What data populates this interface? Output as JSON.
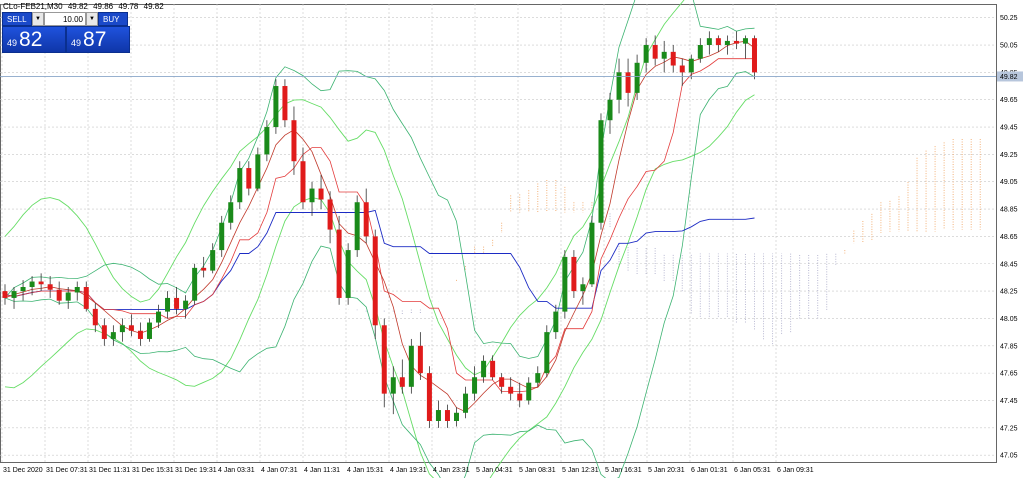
{
  "ohlc": {
    "symbol": "CLo-FEB21,M30",
    "open": "49.82",
    "high": "49.86",
    "low": "49.78",
    "close": "49.82"
  },
  "trade": {
    "sell_label": "SELL",
    "buy_label": "BUY",
    "lot": "10.00",
    "bid_small": "49",
    "bid_big": "82",
    "ask_small": "49",
    "ask_big": "87",
    "dropdown_glyph": "▼"
  },
  "price_axis": {
    "ticks": [
      "50.25",
      "50.05",
      "49.85",
      "49.65",
      "49.45",
      "49.25",
      "49.05",
      "48.85",
      "48.65",
      "48.45",
      "48.25",
      "48.05",
      "47.85",
      "47.65",
      "47.45",
      "47.25",
      "47.05"
    ],
    "current_price": "49.82"
  },
  "time_axis": {
    "labels": [
      "31 Dec 2020",
      "31 Dec 07:31",
      "31 Dec 11:31",
      "31 Dec 15:31",
      "31 Dec 19:31",
      "4 Jan 03:31",
      "4 Jan 07:31",
      "4 Jan 11:31",
      "4 Jan 15:31",
      "4 Jan 19:31",
      "4 Jan 23:31",
      "5 Jan 04:31",
      "5 Jan 08:31",
      "5 Jan 12:31",
      "5 Jan 16:31",
      "5 Jan 20:31",
      "6 Jan 01:31",
      "6 Jan 05:31",
      "6 Jan 09:31"
    ]
  },
  "colors": {
    "bull": "#1a8a1a",
    "bear": "#e01b1b",
    "grid": "#c8c8c8",
    "kumo": "#f3b27a",
    "kumo_bear": "#b9b9d2",
    "bollinger": "#3cb371",
    "envelope": "#66dd66",
    "kijun": "#1c2bc4",
    "tenkan": "#e33b3b",
    "price_line": "#8aa6c8"
  },
  "chart_data": {
    "type": "candlestick",
    "title": "CLo-FEB21,M30",
    "ylim": [
      47.0,
      50.35
    ],
    "candles": [
      [
        48.25,
        48.3,
        48.15,
        48.2
      ],
      [
        48.2,
        48.28,
        48.12,
        48.25
      ],
      [
        48.25,
        48.33,
        48.18,
        48.28
      ],
      [
        48.28,
        48.36,
        48.22,
        48.32
      ],
      [
        48.32,
        48.38,
        48.25,
        48.3
      ],
      [
        48.3,
        48.36,
        48.2,
        48.26
      ],
      [
        48.26,
        48.32,
        48.15,
        48.18
      ],
      [
        48.18,
        48.28,
        48.12,
        48.24
      ],
      [
        48.24,
        48.32,
        48.18,
        48.28
      ],
      [
        48.28,
        48.32,
        48.1,
        48.12
      ],
      [
        48.12,
        48.16,
        47.95,
        48.0
      ],
      [
        48.0,
        48.05,
        47.85,
        47.9
      ],
      [
        47.9,
        48.0,
        47.85,
        47.95
      ],
      [
        47.95,
        48.05,
        47.88,
        48.0
      ],
      [
        48.0,
        48.08,
        47.92,
        47.96
      ],
      [
        47.96,
        48.02,
        47.85,
        47.9
      ],
      [
        47.9,
        48.05,
        47.88,
        48.02
      ],
      [
        48.02,
        48.15,
        47.98,
        48.1
      ],
      [
        48.1,
        48.25,
        48.05,
        48.2
      ],
      [
        48.2,
        48.28,
        48.08,
        48.12
      ],
      [
        48.12,
        48.22,
        48.05,
        48.18
      ],
      [
        48.18,
        48.45,
        48.15,
        48.42
      ],
      [
        48.42,
        48.5,
        48.35,
        48.4
      ],
      [
        48.4,
        48.6,
        48.38,
        48.55
      ],
      [
        48.55,
        48.8,
        48.5,
        48.75
      ],
      [
        48.75,
        48.95,
        48.7,
        48.9
      ],
      [
        48.9,
        49.2,
        48.85,
        49.15
      ],
      [
        49.15,
        49.2,
        48.95,
        49.0
      ],
      [
        49.0,
        49.3,
        48.98,
        49.25
      ],
      [
        49.25,
        49.5,
        49.2,
        49.45
      ],
      [
        49.45,
        49.8,
        49.4,
        49.75
      ],
      [
        49.75,
        49.8,
        49.45,
        49.5
      ],
      [
        49.5,
        49.6,
        49.1,
        49.2
      ],
      [
        49.2,
        49.3,
        48.85,
        48.9
      ],
      [
        48.9,
        49.05,
        48.8,
        49.0
      ],
      [
        49.0,
        49.1,
        48.85,
        48.92
      ],
      [
        48.92,
        48.98,
        48.6,
        48.7
      ],
      [
        48.7,
        48.8,
        48.15,
        48.2
      ],
      [
        48.2,
        48.6,
        48.15,
        48.55
      ],
      [
        48.55,
        48.95,
        48.5,
        48.9
      ],
      [
        48.9,
        49.0,
        48.6,
        48.65
      ],
      [
        48.65,
        48.7,
        47.9,
        48.0
      ],
      [
        48.0,
        48.05,
        47.4,
        47.5
      ],
      [
        47.5,
        47.7,
        47.35,
        47.62
      ],
      [
        47.62,
        47.75,
        47.5,
        47.55
      ],
      [
        47.55,
        47.9,
        47.5,
        47.85
      ],
      [
        47.85,
        47.95,
        47.6,
        47.65
      ],
      [
        47.65,
        47.7,
        47.25,
        47.3
      ],
      [
        47.3,
        47.45,
        47.25,
        47.38
      ],
      [
        47.38,
        47.42,
        47.25,
        47.3
      ],
      [
        47.3,
        47.4,
        47.26,
        47.36
      ],
      [
        47.36,
        47.55,
        47.32,
        47.5
      ],
      [
        47.5,
        47.7,
        47.45,
        47.62
      ],
      [
        47.62,
        47.78,
        47.58,
        47.74
      ],
      [
        47.74,
        47.78,
        47.6,
        47.62
      ],
      [
        47.62,
        47.65,
        47.5,
        47.55
      ],
      [
        47.55,
        47.62,
        47.45,
        47.5
      ],
      [
        47.5,
        47.58,
        47.4,
        47.45
      ],
      [
        47.45,
        47.62,
        47.42,
        47.58
      ],
      [
        47.58,
        47.7,
        47.55,
        47.65
      ],
      [
        47.65,
        48.0,
        47.62,
        47.95
      ],
      [
        47.95,
        48.15,
        47.9,
        48.1
      ],
      [
        48.1,
        48.55,
        48.05,
        48.5
      ],
      [
        48.5,
        48.55,
        48.2,
        48.25
      ],
      [
        48.25,
        48.35,
        48.15,
        48.3
      ],
      [
        48.3,
        48.8,
        48.28,
        48.75
      ],
      [
        48.75,
        49.55,
        48.7,
        49.5
      ],
      [
        49.5,
        49.7,
        49.4,
        49.65
      ],
      [
        49.65,
        49.95,
        49.55,
        49.85
      ],
      [
        49.85,
        49.95,
        49.6,
        49.7
      ],
      [
        49.7,
        49.98,
        49.65,
        49.92
      ],
      [
        49.92,
        50.1,
        49.85,
        50.05
      ],
      [
        50.05,
        50.12,
        49.9,
        49.95
      ],
      [
        49.95,
        50.08,
        49.85,
        50.0
      ],
      [
        50.0,
        50.05,
        49.85,
        49.9
      ],
      [
        49.9,
        49.95,
        49.75,
        49.85
      ],
      [
        49.85,
        49.98,
        49.8,
        49.95
      ],
      [
        49.95,
        50.1,
        49.92,
        50.05
      ],
      [
        50.05,
        50.15,
        49.98,
        50.1
      ],
      [
        50.1,
        50.12,
        50.0,
        50.05
      ],
      [
        50.05,
        50.12,
        49.98,
        50.08
      ],
      [
        50.08,
        50.15,
        50.02,
        50.06
      ],
      [
        50.06,
        50.12,
        49.95,
        50.1
      ],
      [
        50.1,
        50.12,
        49.8,
        49.85
      ]
    ]
  }
}
